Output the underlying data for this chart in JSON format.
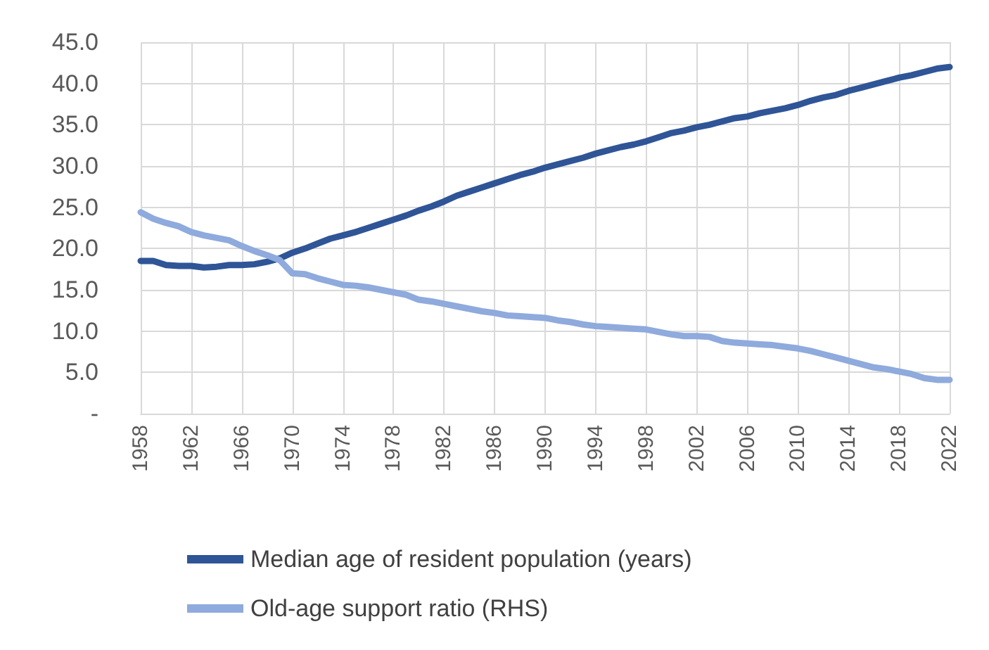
{
  "chart_data": {
    "type": "line",
    "categories": [
      "1958",
      null,
      null,
      null,
      "1962",
      null,
      null,
      null,
      "1966",
      null,
      null,
      null,
      "1970",
      null,
      null,
      null,
      "1974",
      null,
      null,
      null,
      "1978",
      null,
      null,
      null,
      "1982",
      null,
      null,
      null,
      "1986",
      null,
      null,
      null,
      "1990",
      null,
      null,
      null,
      "1994",
      null,
      null,
      null,
      "1998",
      null,
      null,
      null,
      "2002",
      null,
      null,
      null,
      "2006",
      null,
      null,
      null,
      "2010",
      null,
      null,
      null,
      "2014",
      null,
      null,
      null,
      "2018",
      null,
      null,
      null,
      "2022"
    ],
    "series": [
      {
        "name": "Median age of resident population (years)",
        "color": "#2f5597",
        "values": [
          18.5,
          18.5,
          18.0,
          17.9,
          17.9,
          17.7,
          17.8,
          18.0,
          18.0,
          18.1,
          18.4,
          18.8,
          19.5,
          20.0,
          20.6,
          21.2,
          21.6,
          22.0,
          22.5,
          23.0,
          23.5,
          24.0,
          24.6,
          25.1,
          25.7,
          26.4,
          26.9,
          27.4,
          27.9,
          28.4,
          28.9,
          29.3,
          29.8,
          30.2,
          30.6,
          31.0,
          31.5,
          31.9,
          32.3,
          32.6,
          33.0,
          33.5,
          34.0,
          34.3,
          34.7,
          35.0,
          35.4,
          35.8,
          36.0,
          36.4,
          36.7,
          37.0,
          37.4,
          37.9,
          38.3,
          38.6,
          39.1,
          39.5,
          39.9,
          40.3,
          40.7,
          41.0,
          41.4,
          41.8,
          42.0
        ]
      },
      {
        "name": "Old-age support ratio (RHS)",
        "color": "#8faadc",
        "values": [
          24.4,
          23.6,
          23.1,
          22.7,
          22.0,
          21.6,
          21.3,
          21.0,
          20.3,
          19.7,
          19.2,
          18.6,
          17.0,
          16.9,
          16.4,
          16.0,
          15.6,
          15.5,
          15.3,
          15.0,
          14.7,
          14.4,
          13.8,
          13.6,
          13.3,
          13.0,
          12.7,
          12.4,
          12.2,
          11.9,
          11.8,
          11.7,
          11.6,
          11.3,
          11.1,
          10.8,
          10.6,
          10.5,
          10.4,
          10.3,
          10.2,
          9.9,
          9.6,
          9.4,
          9.4,
          9.3,
          8.8,
          8.6,
          8.5,
          8.4,
          8.3,
          8.1,
          7.9,
          7.6,
          7.2,
          6.8,
          6.4,
          6.0,
          5.6,
          5.4,
          5.1,
          4.8,
          4.3,
          4.1,
          4.1
        ]
      }
    ],
    "ylim": [
      0,
      45
    ],
    "yticks": [
      {
        "value": 0,
        "label": "-"
      },
      {
        "value": 5,
        "label": "5.0"
      },
      {
        "value": 10,
        "label": "10.0"
      },
      {
        "value": 15,
        "label": "15.0"
      },
      {
        "value": 20,
        "label": "20.0"
      },
      {
        "value": 25,
        "label": "25.0"
      },
      {
        "value": 30,
        "label": "30.0"
      },
      {
        "value": 35,
        "label": "35.0"
      },
      {
        "value": 40,
        "label": "40.0"
      },
      {
        "value": 45,
        "label": "45.0"
      }
    ],
    "grid": true,
    "legend": "bottom",
    "marker": "none",
    "line_style": "solid"
  }
}
